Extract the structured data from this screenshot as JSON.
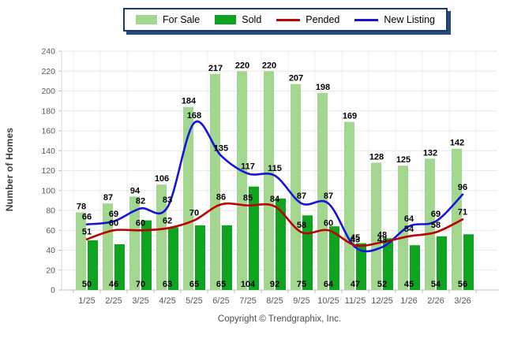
{
  "legend": {
    "items": [
      {
        "label": "For Sale",
        "swatch": "bar",
        "color": "#A3D78F"
      },
      {
        "label": "Sold",
        "swatch": "bar",
        "color": "#0EA41F"
      },
      {
        "label": "Pended",
        "swatch": "line",
        "color": "#BE0000"
      },
      {
        "label": "New Listing",
        "swatch": "line",
        "color": "#1414DC"
      }
    ]
  },
  "chart_data": {
    "type": "bar",
    "categories": [
      "1/25",
      "2/25",
      "3/25",
      "4/25",
      "5/25",
      "6/25",
      "7/25",
      "8/25",
      "9/25",
      "10/25",
      "11/25",
      "12/25",
      "1/26",
      "2/26",
      "3/26"
    ],
    "series": [
      {
        "name": "For Sale",
        "kind": "bar",
        "color": "#A3D78F",
        "values": [
          78,
          87,
          94,
          106,
          184,
          217,
          220,
          220,
          207,
          198,
          169,
          128,
          125,
          132,
          142
        ]
      },
      {
        "name": "Sold",
        "kind": "bar",
        "color": "#0EA41F",
        "values": [
          50,
          46,
          70,
          63,
          65,
          65,
          104,
          92,
          75,
          64,
          47,
          52,
          45,
          54,
          56
        ]
      },
      {
        "name": "Pended",
        "kind": "line",
        "color": "#BE0000",
        "values": [
          51,
          60,
          60,
          62,
          70,
          86,
          85,
          84,
          58,
          60,
          45,
          48,
          54,
          58,
          71
        ]
      },
      {
        "name": "New Listing",
        "kind": "line",
        "color": "#1414DC",
        "values": [
          66,
          69,
          82,
          83,
          168,
          135,
          117,
          115,
          87,
          87,
          43,
          43,
          64,
          69,
          96
        ]
      }
    ],
    "title": "",
    "xlabel": "",
    "ylabel": "Number of Homes",
    "ylim": [
      0,
      240
    ],
    "ytick_step": 20,
    "grid": true,
    "legend_position": "top-center",
    "colors": {
      "grid_h": "#E8E8E8",
      "grid_v": "#EFEFEF",
      "axis": "#BFBFBF",
      "tick_text": "#595959",
      "data_label": "#000000"
    }
  },
  "footer": {
    "copyright": "Copyright © Trendgraphix, Inc."
  }
}
